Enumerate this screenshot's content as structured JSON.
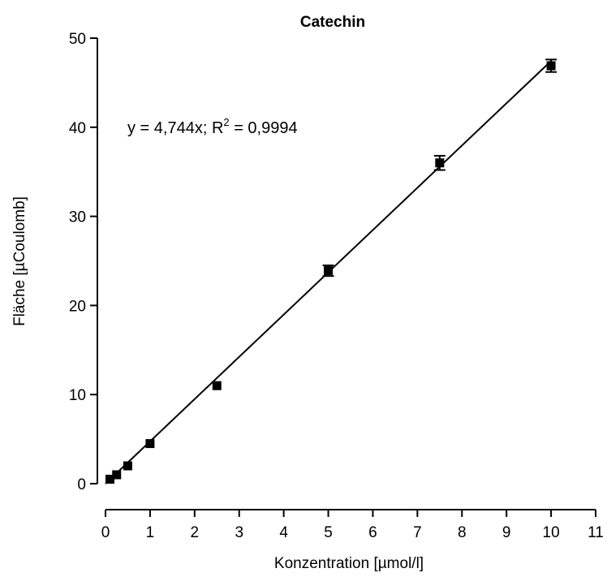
{
  "chart_data": {
    "type": "scatter",
    "title": "Catechin",
    "xlabel": "Konzentration [µmol/l]",
    "ylabel": "Fläche [µCoulomb]",
    "xlim": [
      0,
      11
    ],
    "ylim": [
      0,
      50
    ],
    "x_ticks": [
      "0",
      "1",
      "2",
      "3",
      "4",
      "5",
      "6",
      "7",
      "8",
      "9",
      "10",
      "11"
    ],
    "y_ticks": [
      "0",
      "10",
      "20",
      "30",
      "40",
      "50"
    ],
    "grid": false,
    "marker": "square",
    "color": "#000000",
    "points": [
      {
        "x": 0.1,
        "y": 0.5,
        "err": 0.0
      },
      {
        "x": 0.25,
        "y": 1.0,
        "err": 0.0
      },
      {
        "x": 0.5,
        "y": 2.0,
        "err": 0.0
      },
      {
        "x": 1.0,
        "y": 4.5,
        "err": 0.0
      },
      {
        "x": 2.5,
        "y": 11.0,
        "err": 0.0
      },
      {
        "x": 5.0,
        "y": 23.9,
        "err": 0.6
      },
      {
        "x": 7.5,
        "y": 36.0,
        "err": 0.8
      },
      {
        "x": 10.0,
        "y": 46.9,
        "err": 0.7
      }
    ],
    "fit": {
      "slope": 4.744,
      "x_range": [
        0,
        10
      ],
      "equation": {
        "prefix": "y  =  4,744x;  R",
        "sup": "2",
        "suffix": " =  0,9994"
      }
    }
  }
}
